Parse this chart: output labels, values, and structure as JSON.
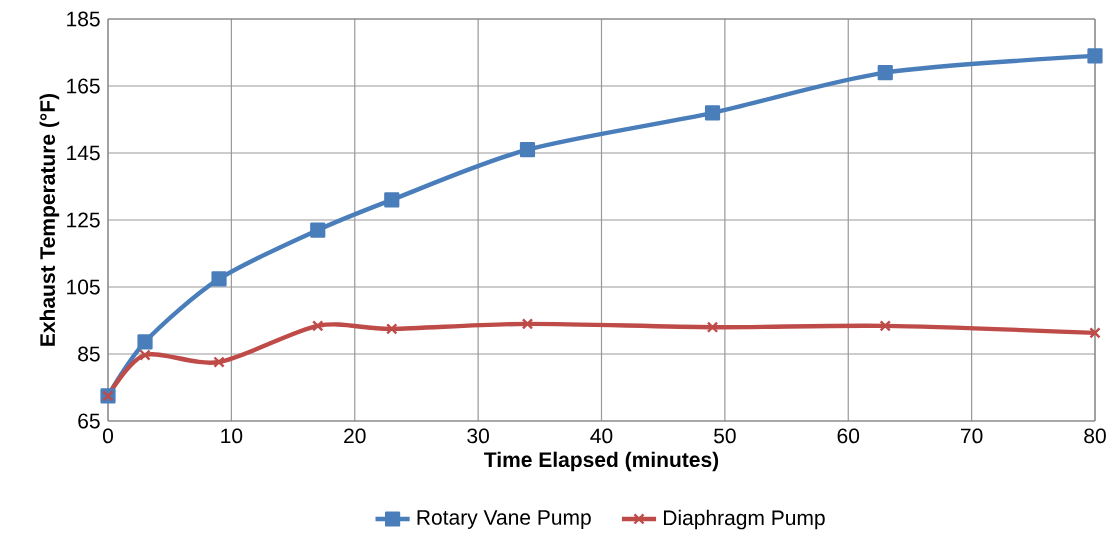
{
  "chart_data": {
    "type": "line",
    "xlabel": "Time Elapsed (minutes)",
    "ylabel": "Exhaust Temperature  (°F)",
    "xlim": [
      0,
      80
    ],
    "xticks": [
      0,
      10,
      20,
      30,
      40,
      50,
      60,
      70,
      80
    ],
    "ylim": [
      65,
      185
    ],
    "yticks": [
      65,
      85,
      105,
      125,
      145,
      165,
      185
    ],
    "grid": true,
    "legend": "bottom",
    "series": [
      {
        "name": "Rotary Vane Pump",
        "color": "#4a7ebb",
        "marker": "square",
        "x": [
          0,
          3,
          9,
          17,
          23,
          34,
          49,
          63,
          80
        ],
        "values": [
          72.5,
          88.6,
          107.4,
          122,
          131,
          146,
          157,
          169,
          174
        ]
      },
      {
        "name": "Diaphragm Pump",
        "color": "#be4b48",
        "marker": "cross",
        "x": [
          0,
          3,
          9,
          17,
          23,
          34,
          49,
          63,
          80
        ],
        "values": [
          72.5,
          84.7,
          82.6,
          93.4,
          92.5,
          94,
          93,
          93.4,
          91.3
        ]
      }
    ]
  }
}
